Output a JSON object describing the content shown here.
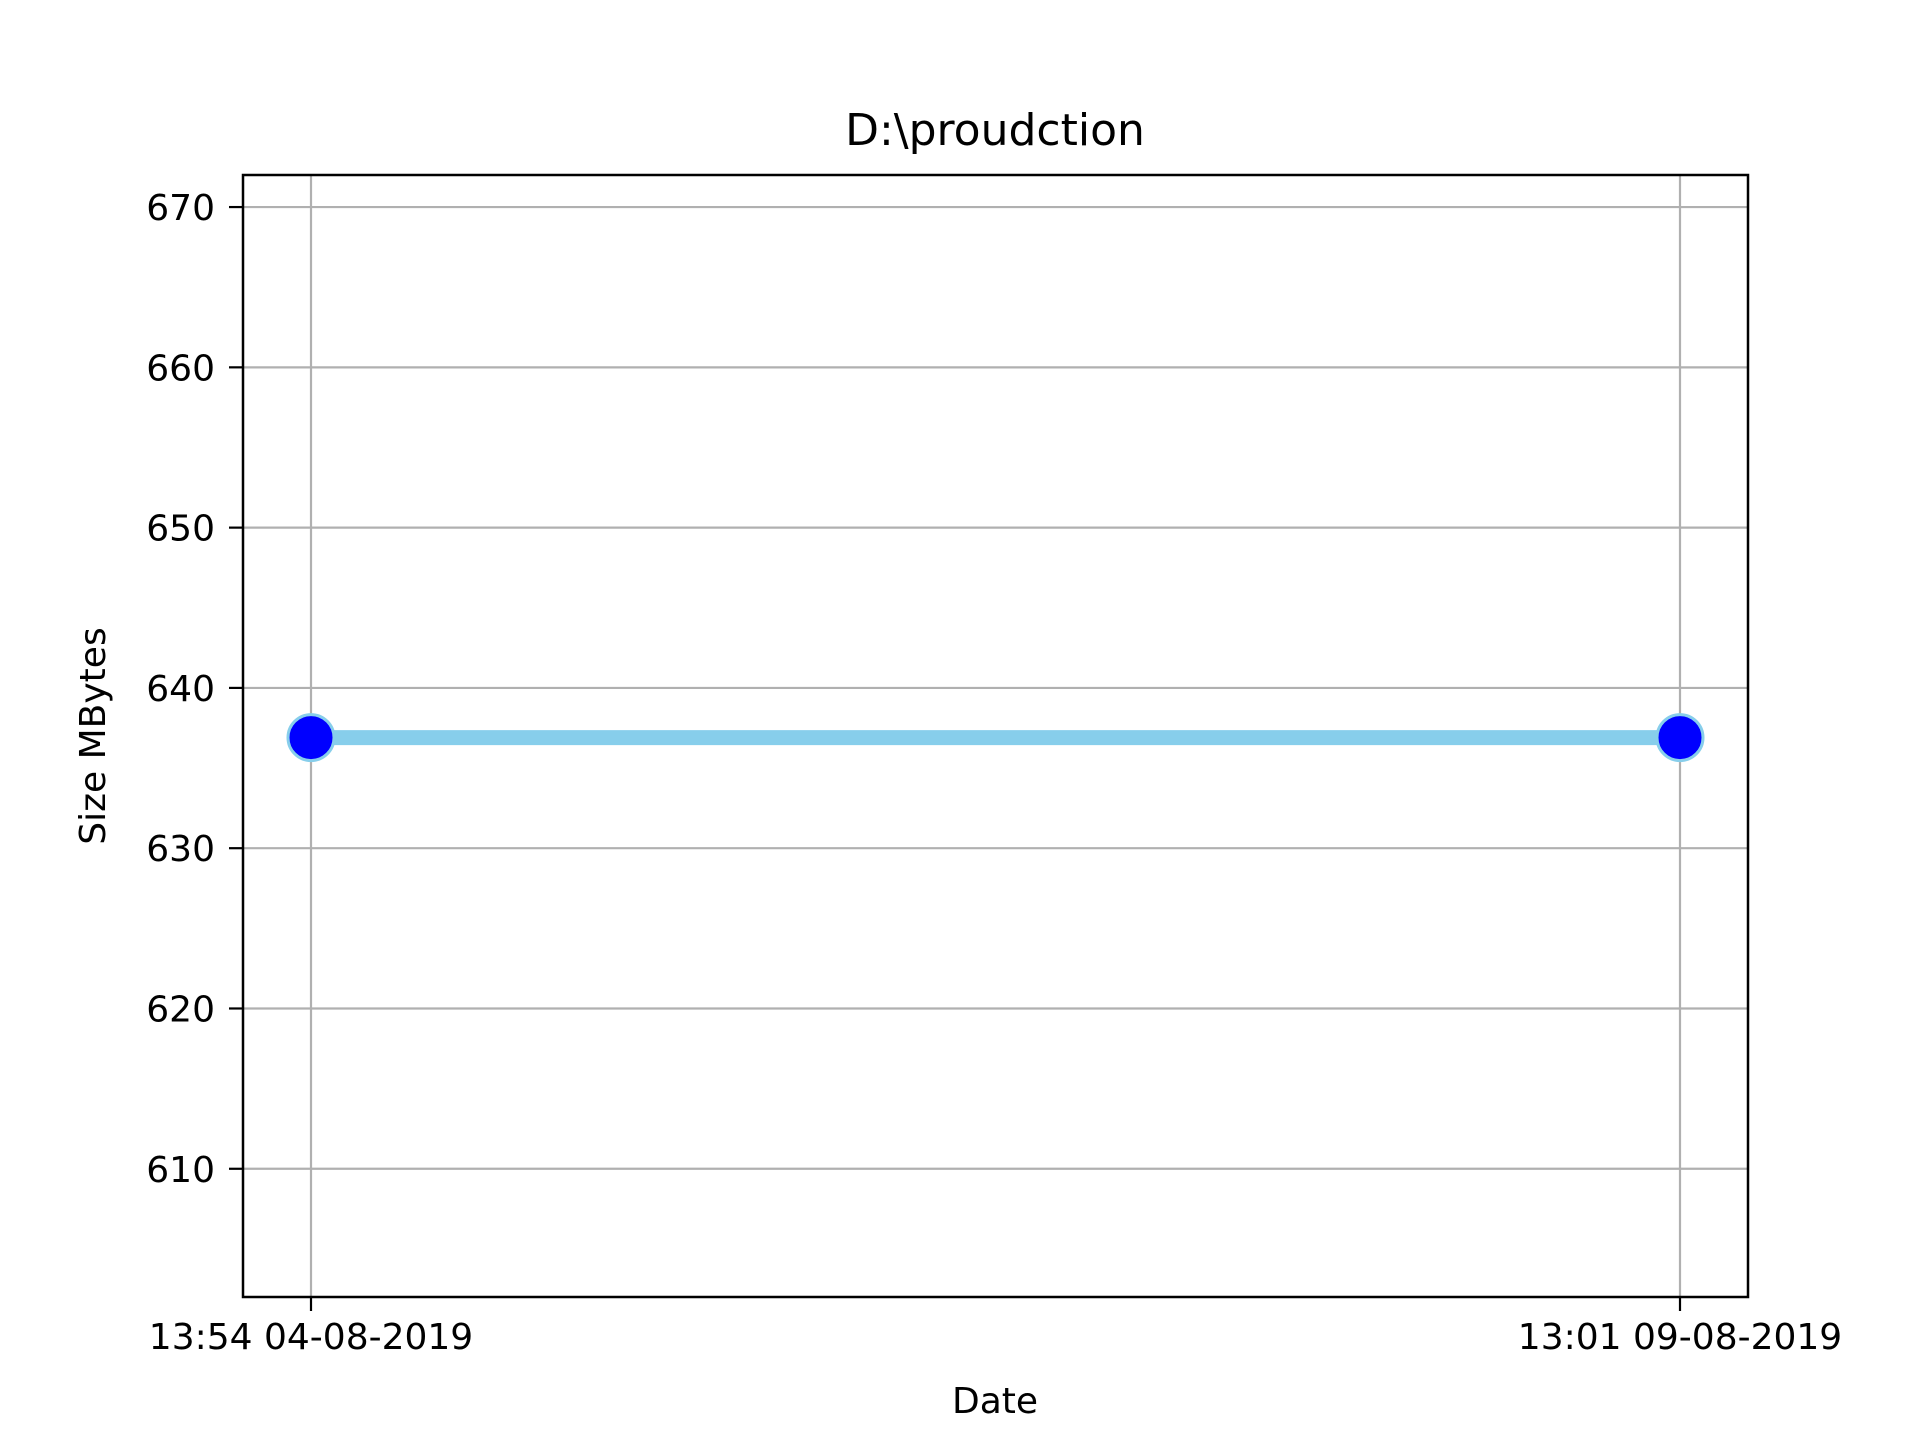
{
  "chart_data": {
    "type": "line",
    "title": "D:\\proudction",
    "xlabel": "Date",
    "ylabel": "Size MBytes",
    "categories": [
      "13:54 04-08-2019",
      "13:01 09-08-2019"
    ],
    "series": [
      {
        "name": "D:\\proudction",
        "values": [
          636.9,
          636.9
        ]
      }
    ],
    "ylim": [
      602,
      672
    ],
    "yticks": [
      610,
      620,
      630,
      640,
      650,
      660,
      670
    ],
    "grid": true,
    "colors": {
      "line": "#87ceeb",
      "marker_fill": "#0000ff",
      "marker_edge": "#87ceeb",
      "grid": "#b0b0b0"
    }
  }
}
